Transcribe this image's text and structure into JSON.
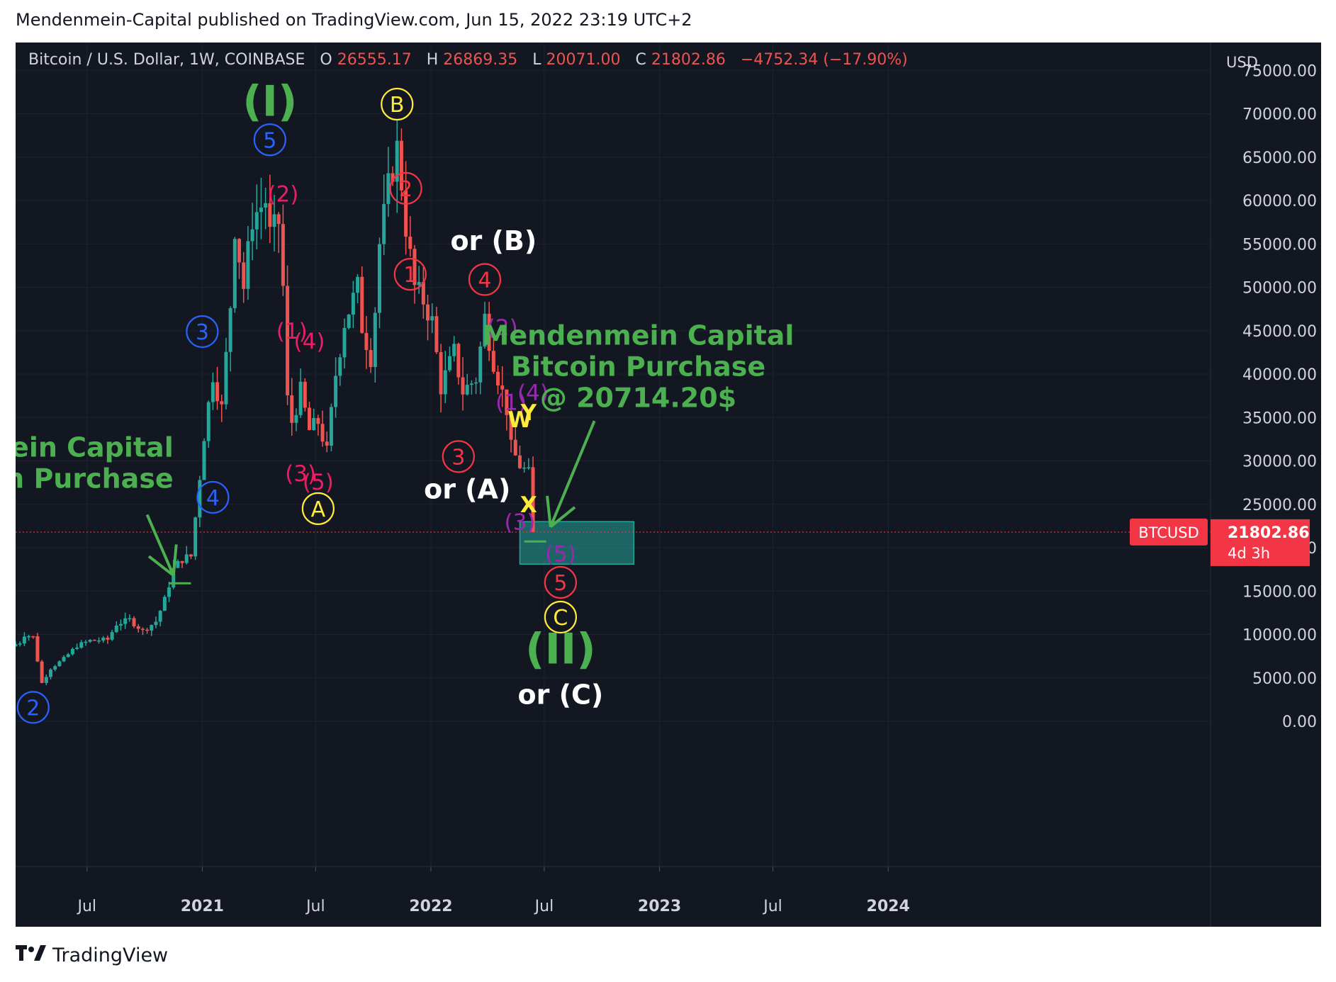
{
  "header": {
    "publisher": "Mendenmein-Capital published on TradingView.com, Jun 15, 2022 23:19 UTC+2"
  },
  "footer": {
    "brand": "TradingView",
    "logo_icon": "tradingview-logo-icon"
  },
  "colors": {
    "background": "#131722",
    "up": "#26a69a",
    "down": "#ef5350",
    "grid": "#1e222d",
    "axis_text": "#d1d4dc",
    "green_label": "#4caf50",
    "blue_label": "#2962ff",
    "red_label": "#f23645",
    "pink_label": "#e91e63",
    "yellow_label": "#ffeb3b",
    "purple_label": "#9c27b0",
    "white_label": "#ffffff"
  },
  "chart_data": {
    "type": "candlestick",
    "symbol_line": {
      "name": "Bitcoin / U.S. Dollar, 1W, COINBASE",
      "open_prefix": "O",
      "open": "26555.17",
      "high_prefix": "H",
      "high": "26869.35",
      "low_prefix": "L",
      "low": "20071.00",
      "close_prefix": "C",
      "close": "21802.86",
      "change": "−4752.34 (−17.90%)"
    },
    "currency": "USD",
    "y_ticks": [
      "0.00",
      "5000.00",
      "10000.00",
      "15000.00",
      "20000.00",
      "25000.00",
      "30000.00",
      "35000.00",
      "40000.00",
      "45000.00",
      "50000.00",
      "55000.00",
      "60000.00",
      "65000.00",
      "70000.00",
      "75000.00"
    ],
    "ylim": [
      0,
      76000
    ],
    "x_range": [
      "2020-03-09",
      "2024-06-10"
    ],
    "x_ticks": [
      {
        "date": "2020-07-01",
        "label": "Jul"
      },
      {
        "date": "2021-01-01",
        "label": "2021"
      },
      {
        "date": "2021-07-01",
        "label": "Jul"
      },
      {
        "date": "2022-01-01",
        "label": "2022"
      },
      {
        "date": "2022-07-01",
        "label": "Jul"
      },
      {
        "date": "2023-01-01",
        "label": "2023"
      },
      {
        "date": "2023-07-01",
        "label": "Jul"
      },
      {
        "date": "2024-01-01",
        "label": "2024"
      }
    ],
    "price_tag": {
      "symbol": "BTCUSD",
      "price": "21802.86",
      "countdown": "4d 3h",
      "value": 21802.86
    },
    "price_path": [
      {
        "date": "2020-03-09",
        "price": 8900
      },
      {
        "date": "2020-03-16",
        "price": 9100
      },
      {
        "date": "2020-03-23",
        "price": 10000
      },
      {
        "date": "2020-04-06",
        "price": 9700
      },
      {
        "date": "2020-04-13",
        "price": 7000
      },
      {
        "date": "2020-04-20",
        "price": 4400
      },
      {
        "date": "2020-05-04",
        "price": 6100
      },
      {
        "date": "2020-05-25",
        "price": 7200
      },
      {
        "date": "2020-06-15",
        "price": 8700
      },
      {
        "date": "2020-07-06",
        "price": 9300
      },
      {
        "date": "2020-08-03",
        "price": 9400
      },
      {
        "date": "2020-08-17",
        "price": 11200
      },
      {
        "date": "2020-09-07",
        "price": 11700
      },
      {
        "date": "2020-09-28",
        "price": 10400
      },
      {
        "date": "2020-10-19",
        "price": 11500
      },
      {
        "date": "2020-11-02",
        "price": 14000
      },
      {
        "date": "2020-11-16",
        "price": 17500
      },
      {
        "date": "2020-11-30",
        "price": 18700
      },
      {
        "date": "2020-12-14",
        "price": 19000
      },
      {
        "date": "2020-12-21",
        "price": 23500
      },
      {
        "date": "2021-01-04",
        "price": 33000
      },
      {
        "date": "2021-01-18",
        "price": 40000
      },
      {
        "date": "2021-02-01",
        "price": 36000
      },
      {
        "date": "2021-02-15",
        "price": 48000
      },
      {
        "date": "2021-02-22",
        "price": 57000
      },
      {
        "date": "2021-03-08",
        "price": 50000
      },
      {
        "date": "2021-03-22",
        "price": 58000
      },
      {
        "date": "2021-04-12",
        "price": 60000
      },
      {
        "date": "2021-04-19",
        "price": 56000
      },
      {
        "date": "2021-05-03",
        "price": 57500
      },
      {
        "date": "2021-05-10",
        "price": 50000
      },
      {
        "date": "2021-05-17",
        "price": 37000
      },
      {
        "date": "2021-05-24",
        "price": 34500
      },
      {
        "date": "2021-06-07",
        "price": 38000
      },
      {
        "date": "2021-06-21",
        "price": 33500
      },
      {
        "date": "2021-07-05",
        "price": 34500
      },
      {
        "date": "2021-07-19",
        "price": 31000
      },
      {
        "date": "2021-08-02",
        "price": 40000
      },
      {
        "date": "2021-08-16",
        "price": 46000
      },
      {
        "date": "2021-09-06",
        "price": 50000
      },
      {
        "date": "2021-09-13",
        "price": 45500
      },
      {
        "date": "2021-09-27",
        "price": 42000
      },
      {
        "date": "2021-10-04",
        "price": 47500
      },
      {
        "date": "2021-10-11",
        "price": 55000
      },
      {
        "date": "2021-10-25",
        "price": 61500
      },
      {
        "date": "2021-11-08",
        "price": 66000
      },
      {
        "date": "2021-11-15",
        "price": 62000
      },
      {
        "date": "2021-11-22",
        "price": 57000
      },
      {
        "date": "2021-12-06",
        "price": 50000
      },
      {
        "date": "2021-12-20",
        "price": 48500
      },
      {
        "date": "2022-01-03",
        "price": 46000
      },
      {
        "date": "2022-01-17",
        "price": 38500
      },
      {
        "date": "2022-02-07",
        "price": 42500
      },
      {
        "date": "2022-02-21",
        "price": 38000
      },
      {
        "date": "2022-03-14",
        "price": 39500
      },
      {
        "date": "2022-03-28",
        "price": 46500
      },
      {
        "date": "2022-04-11",
        "price": 41500
      },
      {
        "date": "2022-05-02",
        "price": 36000
      },
      {
        "date": "2022-05-09",
        "price": 31500
      },
      {
        "date": "2022-05-23",
        "price": 29500
      },
      {
        "date": "2022-06-06",
        "price": 28500
      },
      {
        "date": "2022-06-13",
        "price": 21800
      }
    ],
    "annotations": [
      {
        "text": "(I)",
        "date": "2021-04-19",
        "price": 71500,
        "style": "green_big"
      },
      {
        "text": "5",
        "date": "2021-04-19",
        "price": 67000,
        "style": "circle_blue"
      },
      {
        "text": "(2)",
        "date": "2021-05-10",
        "price": 60800,
        "style": "pink"
      },
      {
        "text": "3",
        "date": "2021-01-01",
        "price": 44900,
        "style": "circle_blue"
      },
      {
        "text": "(1)",
        "date": "2021-05-24",
        "price": 45000,
        "style": "pink"
      },
      {
        "text": "(4)",
        "date": "2021-06-21",
        "price": 43800,
        "style": "pink"
      },
      {
        "text": "(3)",
        "date": "2021-06-07",
        "price": 28600,
        "style": "pink"
      },
      {
        "text": "(5)",
        "date": "2021-07-05",
        "price": 27600,
        "style": "pink"
      },
      {
        "text": "A",
        "date": "2021-07-05",
        "price": 24500,
        "style": "circle_yellow"
      },
      {
        "text": "4",
        "date": "2021-01-18",
        "price": 25800,
        "style": "circle_blue"
      },
      {
        "text": "2",
        "date": "2020-04-06",
        "price": 1600,
        "style": "circle_blue"
      },
      {
        "text": "B",
        "date": "2021-11-08",
        "price": 71100,
        "style": "circle_yellow"
      },
      {
        "text": "2",
        "date": "2021-11-22",
        "price": 61400,
        "style": "circle_red"
      },
      {
        "text": "1",
        "date": "2021-11-29",
        "price": 51500,
        "style": "circle_red"
      },
      {
        "text": "or (B)",
        "date": "2022-04-11",
        "price": 55400,
        "style": "white_big"
      },
      {
        "text": "4",
        "date": "2022-03-28",
        "price": 50900,
        "style": "circle_red"
      },
      {
        "text": "(2)",
        "date": "2022-04-25",
        "price": 45400,
        "style": "purple"
      },
      {
        "text": "3",
        "date": "2022-02-14",
        "price": 30500,
        "style": "circle_red"
      },
      {
        "text": "or (A)",
        "date": "2022-02-28",
        "price": 26800,
        "style": "white_big"
      },
      {
        "text": "(1)",
        "date": "2022-05-09",
        "price": 36800,
        "style": "purple"
      },
      {
        "text": "(4)",
        "date": "2022-06-13",
        "price": 37900,
        "style": "purple"
      },
      {
        "text": "W",
        "date": "2022-05-23",
        "price": 34800,
        "style": "yellow_letter"
      },
      {
        "text": "Y",
        "date": "2022-06-06",
        "price": 35600,
        "style": "yellow_letter"
      },
      {
        "text": "X",
        "date": "2022-06-06",
        "price": 25000,
        "style": "yellow_letter"
      },
      {
        "text": "(3)",
        "date": "2022-05-23",
        "price": 23000,
        "style": "purple"
      },
      {
        "text": "(5)",
        "date": "2022-07-27",
        "price": 19300,
        "style": "purple"
      },
      {
        "text": "5",
        "date": "2022-07-27",
        "price": 16000,
        "style": "circle_red"
      },
      {
        "text": "C",
        "date": "2022-07-27",
        "price": 12000,
        "style": "circle_yellow"
      },
      {
        "text": "(II)",
        "date": "2022-07-27",
        "price": 8400,
        "style": "green_big"
      },
      {
        "text": "or (C)",
        "date": "2022-07-27",
        "price": 3100,
        "style": "white_big"
      }
    ],
    "callouts": [
      {
        "lines": [
          "Mendenmein Capital",
          "Bitcoin Purchase"
        ],
        "anchor": "right",
        "date": "2020-11-16",
        "price": 30500
      },
      {
        "lines": [
          "Mendenmein Capital",
          "Bitcoin Purchase",
          "@ 20714.20$"
        ],
        "anchor": "center",
        "date": "2022-11-28",
        "price": 43400
      }
    ],
    "purchase_zone": {
      "from": "2022-05-23",
      "to": "2022-11-21",
      "low": 18100,
      "high": 23000
    },
    "purchase_marks": [
      {
        "date_from": "2020-11-09",
        "date_to": "2020-12-14",
        "price": 15900
      },
      {
        "date_from": "2022-05-30",
        "date_to": "2022-07-04",
        "price": 20714.2
      }
    ],
    "arrows": [
      {
        "from_date": "2020-10-05",
        "from_price": 23800,
        "to_date": "2020-11-16",
        "to_price": 16800
      },
      {
        "from_date": "2022-09-19",
        "from_price": 34600,
        "to_date": "2022-07-11",
        "to_price": 22400
      }
    ]
  }
}
